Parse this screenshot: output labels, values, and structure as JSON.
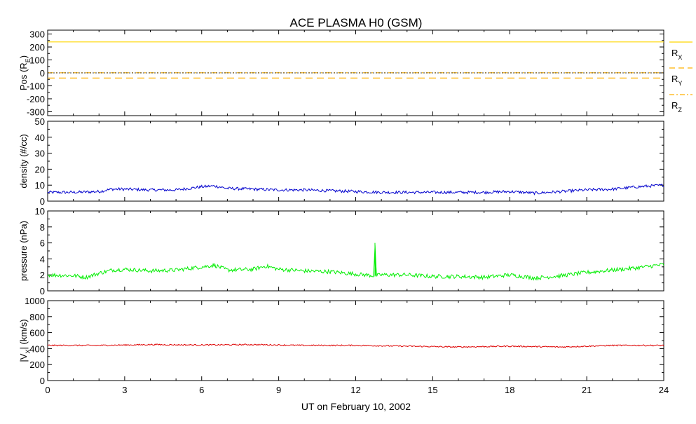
{
  "chart_data": [
    {
      "type": "line",
      "panel": "position",
      "title": "ACE PLASMA H0 (GSM)",
      "ylabel": "Pos (R",
      "ylabel_sub": "E",
      "ylabel_close": ")",
      "ylim": [
        -330,
        330
      ],
      "yticks": [
        -300,
        -200,
        -100,
        0,
        100,
        200,
        300
      ],
      "series": [
        {
          "name": "R",
          "sub": "X",
          "style": "solid",
          "color": "#FFD700",
          "x": [
            0,
            24
          ],
          "y": [
            239,
            239
          ]
        },
        {
          "name": "R",
          "sub": "Y",
          "style": "dashed",
          "color": "#FFB000",
          "x": [
            0,
            24
          ],
          "y": [
            -40,
            -40
          ]
        },
        {
          "name": "R",
          "sub": "Z",
          "style": "dashdot",
          "color": "#FFB000",
          "x": [
            0,
            24
          ],
          "y": [
            1,
            1
          ]
        }
      ],
      "zero_line": true
    },
    {
      "type": "line",
      "panel": "density",
      "ylabel": "density (#/cc)",
      "ylim": [
        0,
        50
      ],
      "yticks": [
        0,
        10,
        20,
        30,
        40,
        50
      ],
      "series": [
        {
          "color": "#0000CD",
          "x": [
            0,
            1,
            2,
            2.5,
            3,
            4,
            5,
            6,
            6.5,
            7,
            8,
            9,
            10,
            11,
            12,
            13,
            14,
            15,
            16,
            17,
            18,
            19,
            20,
            21,
            22,
            23,
            24
          ],
          "y": [
            5.5,
            5.5,
            6,
            7.5,
            7.5,
            7,
            7,
            9,
            9.5,
            8,
            7.5,
            7,
            7,
            6.5,
            6,
            5.5,
            5.5,
            5.5,
            5.5,
            5.5,
            6,
            5,
            6,
            7,
            7.5,
            9,
            10
          ]
        }
      ]
    },
    {
      "type": "line",
      "panel": "pressure",
      "ylabel": "pressure (nPa)",
      "ylim": [
        0,
        10
      ],
      "yticks": [
        0,
        2,
        4,
        6,
        8,
        10
      ],
      "series": [
        {
          "color": "#00EE00",
          "x": [
            0,
            1,
            1.5,
            2,
            2.5,
            3,
            4,
            5,
            6,
            6.5,
            7,
            8,
            8.5,
            9,
            10,
            11,
            12,
            12.7,
            12.75,
            12.8,
            13,
            14,
            15,
            16,
            17,
            18,
            19,
            20,
            21,
            22,
            23,
            24
          ],
          "y": [
            2,
            1.9,
            1.7,
            2.2,
            2.6,
            2.7,
            2.5,
            2.6,
            3,
            3.2,
            2.6,
            2.7,
            3.1,
            2.7,
            2.5,
            2.4,
            2.1,
            1.9,
            6.0,
            1.9,
            2.0,
            2.0,
            1.8,
            1.8,
            1.7,
            2.0,
            1.6,
            1.9,
            2.3,
            2.6,
            2.9,
            3.3
          ]
        }
      ]
    },
    {
      "type": "line",
      "panel": "velocity",
      "ylabel": "|V",
      "ylabel_sub": "X",
      "ylabel_close": "| (km/s)",
      "ylim": [
        0,
        1000
      ],
      "yticks": [
        0,
        200,
        400,
        600,
        800,
        1000
      ],
      "series": [
        {
          "color": "#DD0000",
          "x": [
            0,
            2,
            4,
            6,
            8,
            10,
            12,
            14,
            16,
            18,
            20,
            22,
            24
          ],
          "y": [
            440,
            440,
            450,
            445,
            450,
            440,
            440,
            430,
            420,
            430,
            420,
            440,
            440
          ]
        }
      ],
      "xlabel": "UT on February 10, 2002",
      "xlim": [
        0,
        24
      ],
      "xticks": [
        0,
        3,
        6,
        9,
        12,
        15,
        18,
        21,
        24
      ]
    }
  ]
}
